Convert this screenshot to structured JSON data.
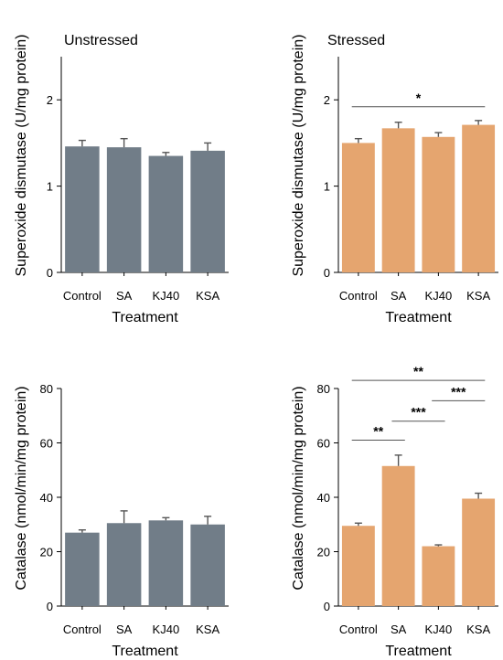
{
  "chart_data": [
    {
      "type": "bar",
      "title": "Unstressed",
      "xlabel": "Treatment",
      "ylabel": "Superoxide dismutase (U/mg protein)",
      "categories": [
        "Control",
        "SA",
        "KJ40",
        "KSA"
      ],
      "values": [
        1.46,
        1.45,
        1.35,
        1.41
      ],
      "errors": [
        0.07,
        0.1,
        0.04,
        0.09
      ],
      "ylim": [
        0,
        2.5
      ],
      "yticks": [
        0,
        1,
        2
      ],
      "color": "#717d88",
      "significance": []
    },
    {
      "type": "bar",
      "title": "Stressed",
      "xlabel": "Treatment",
      "ylabel": "Superoxide dismutase (U/mg protein)",
      "categories": [
        "Control",
        "SA",
        "KJ40",
        "KSA"
      ],
      "values": [
        1.5,
        1.67,
        1.57,
        1.71
      ],
      "errors": [
        0.05,
        0.07,
        0.05,
        0.05
      ],
      "ylim": [
        0,
        2.5
      ],
      "yticks": [
        0,
        1,
        2
      ],
      "color": "#e5a56f",
      "significance": [
        {
          "from": "Control",
          "to": "KSA",
          "y": 1.92,
          "label": "*"
        }
      ]
    },
    {
      "type": "bar",
      "title": "",
      "xlabel": "Treatment",
      "ylabel": "Catalase (nmol/min/mg protein)",
      "categories": [
        "Control",
        "SA",
        "KJ40",
        "KSA"
      ],
      "values": [
        27,
        30.5,
        31.5,
        30
      ],
      "errors": [
        1,
        4.5,
        1,
        3
      ],
      "ylim": [
        0,
        80
      ],
      "yticks": [
        0,
        20,
        40,
        60,
        80
      ],
      "color": "#717d88",
      "significance": []
    },
    {
      "type": "bar",
      "title": "",
      "xlabel": "Treatment",
      "ylabel": "Catalase (nmol/min/mg protein)",
      "categories": [
        "Control",
        "SA",
        "KJ40",
        "KSA"
      ],
      "values": [
        29.5,
        51.5,
        22,
        39.5
      ],
      "errors": [
        1,
        4,
        0.5,
        2
      ],
      "ylim": [
        0,
        80
      ],
      "yticks": [
        0,
        20,
        40,
        60,
        80
      ],
      "color": "#e5a56f",
      "significance": [
        {
          "from": "Control",
          "to": "KSA",
          "y": 83,
          "label": "**"
        },
        {
          "from": "KJ40",
          "to": "KSA",
          "y": 75.5,
          "label": "***"
        },
        {
          "from": "SA",
          "to": "KJ40",
          "y": 68,
          "label": "***"
        },
        {
          "from": "Control",
          "to": "SA",
          "y": 61,
          "label": "**"
        }
      ]
    }
  ]
}
